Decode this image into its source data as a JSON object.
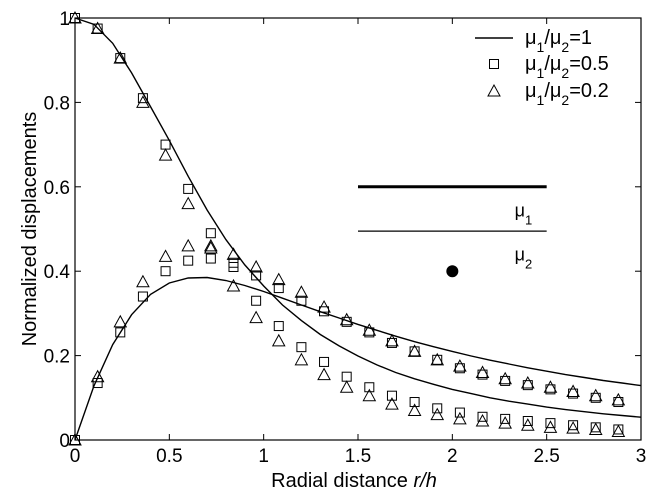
{
  "chart_data": {
    "type": "scatter",
    "xlabel": "Radial distance",
    "xlabel_italic": "r/h",
    "ylabel": "Normalized displacements",
    "xlim": [
      0,
      3
    ],
    "ylim": [
      0,
      1
    ],
    "x_ticks": [
      "0",
      "0.5",
      "1",
      "1.5",
      "2",
      "2.5",
      "3"
    ],
    "y_ticks": [
      "0",
      "0.2",
      "0.4",
      "0.6",
      "0.8",
      "1"
    ],
    "grid": false,
    "legend_position": "top-right",
    "legend": [
      {
        "mu": "μ",
        "sub1": "1",
        "slash": "/",
        "sub2": "2",
        "value": "=1",
        "marker": "line"
      },
      {
        "mu": "μ",
        "sub1": "1",
        "slash": "/",
        "sub2": "2",
        "value": "=0.5",
        "marker": "square"
      },
      {
        "mu": "μ",
        "sub1": "1",
        "slash": "/",
        "sub2": "2",
        "value": "=0.2",
        "marker": "triangle"
      }
    ],
    "series": [
      {
        "name": "μ1/μ2=1 (vertical)",
        "style": "line",
        "x": [
          0,
          0.1,
          0.2,
          0.3,
          0.4,
          0.5,
          0.6,
          0.7,
          0.8,
          0.9,
          1.0,
          1.1,
          1.2,
          1.3,
          1.4,
          1.5,
          1.6,
          1.7,
          1.8,
          1.9,
          2.0,
          2.1,
          2.2,
          2.3,
          2.4,
          2.5,
          2.6,
          2.7,
          2.8,
          2.9,
          3.0
        ],
        "y": [
          1.0,
          0.985,
          0.94,
          0.87,
          0.79,
          0.71,
          0.625,
          0.545,
          0.475,
          0.415,
          0.365,
          0.32,
          0.283,
          0.25,
          0.223,
          0.199,
          0.178,
          0.16,
          0.145,
          0.132,
          0.12,
          0.11,
          0.1,
          0.092,
          0.085,
          0.078,
          0.072,
          0.067,
          0.062,
          0.058,
          0.054
        ]
      },
      {
        "name": "μ1/μ2=1 (radial)",
        "style": "line",
        "x": [
          0,
          0.1,
          0.2,
          0.3,
          0.4,
          0.5,
          0.6,
          0.7,
          0.8,
          0.9,
          1.0,
          1.1,
          1.2,
          1.3,
          1.4,
          1.5,
          1.6,
          1.7,
          1.8,
          1.9,
          2.0,
          2.1,
          2.2,
          2.3,
          2.4,
          2.5,
          2.6,
          2.7,
          2.8,
          2.9,
          3.0
        ],
        "y": [
          0,
          0.128,
          0.226,
          0.297,
          0.345,
          0.372,
          0.384,
          0.385,
          0.378,
          0.366,
          0.352,
          0.336,
          0.32,
          0.304,
          0.289,
          0.274,
          0.26,
          0.246,
          0.233,
          0.221,
          0.21,
          0.199,
          0.189,
          0.18,
          0.171,
          0.163,
          0.155,
          0.148,
          0.141,
          0.135,
          0.129
        ]
      },
      {
        "name": "μ1/μ2=0.5 (vertical)",
        "style": "square",
        "x": [
          0,
          0.12,
          0.24,
          0.36,
          0.48,
          0.6,
          0.72,
          0.84,
          0.96,
          1.08,
          1.2,
          1.32,
          1.44,
          1.56,
          1.68,
          1.8,
          1.92,
          2.04,
          2.16,
          2.28,
          2.4,
          2.52,
          2.64,
          2.76,
          2.88
        ],
        "y": [
          1.0,
          0.975,
          0.905,
          0.81,
          0.7,
          0.595,
          0.49,
          0.41,
          0.33,
          0.27,
          0.22,
          0.185,
          0.15,
          0.125,
          0.105,
          0.09,
          0.075,
          0.065,
          0.055,
          0.05,
          0.045,
          0.04,
          0.035,
          0.03,
          0.025
        ]
      },
      {
        "name": "μ1/μ2=0.5 (radial)",
        "style": "square",
        "x": [
          0,
          0.12,
          0.24,
          0.36,
          0.48,
          0.6,
          0.72,
          0.84,
          0.96,
          1.08,
          1.2,
          1.32,
          1.44,
          1.56,
          1.68,
          1.8,
          1.92,
          2.04,
          2.16,
          2.28,
          2.4,
          2.52,
          2.64,
          2.76,
          2.88
        ],
        "y": [
          0,
          0.135,
          0.255,
          0.34,
          0.4,
          0.425,
          0.43,
          0.42,
          0.39,
          0.36,
          0.33,
          0.305,
          0.28,
          0.255,
          0.23,
          0.21,
          0.19,
          0.17,
          0.155,
          0.14,
          0.13,
          0.12,
          0.11,
          0.1,
          0.09
        ]
      },
      {
        "name": "μ1/μ2=0.2 (vertical)",
        "style": "triangle",
        "x": [
          0,
          0.12,
          0.24,
          0.36,
          0.48,
          0.6,
          0.72,
          0.84,
          0.96,
          1.08,
          1.2,
          1.32,
          1.44,
          1.56,
          1.68,
          1.8,
          1.92,
          2.04,
          2.16,
          2.28,
          2.4,
          2.52,
          2.64,
          2.76,
          2.88
        ],
        "y": [
          1.0,
          0.975,
          0.905,
          0.8,
          0.675,
          0.56,
          0.455,
          0.365,
          0.29,
          0.235,
          0.19,
          0.155,
          0.125,
          0.105,
          0.085,
          0.07,
          0.06,
          0.05,
          0.045,
          0.04,
          0.035,
          0.03,
          0.028,
          0.025,
          0.02
        ]
      },
      {
        "name": "μ1/μ2=0.2 (radial)",
        "style": "triangle",
        "x": [
          0,
          0.12,
          0.24,
          0.36,
          0.48,
          0.6,
          0.72,
          0.84,
          0.96,
          1.08,
          1.2,
          1.32,
          1.44,
          1.56,
          1.68,
          1.8,
          1.92,
          2.04,
          2.16,
          2.28,
          2.4,
          2.52,
          2.64,
          2.76,
          2.88
        ],
        "y": [
          0,
          0.15,
          0.28,
          0.375,
          0.435,
          0.46,
          0.46,
          0.44,
          0.41,
          0.38,
          0.35,
          0.315,
          0.285,
          0.26,
          0.235,
          0.21,
          0.19,
          0.175,
          0.16,
          0.145,
          0.135,
          0.125,
          0.115,
          0.105,
          0.095
        ]
      }
    ],
    "inset": {
      "label_top": {
        "mu": "μ",
        "sub": "1"
      },
      "label_bottom": {
        "mu": "μ",
        "sub": "2"
      }
    }
  }
}
